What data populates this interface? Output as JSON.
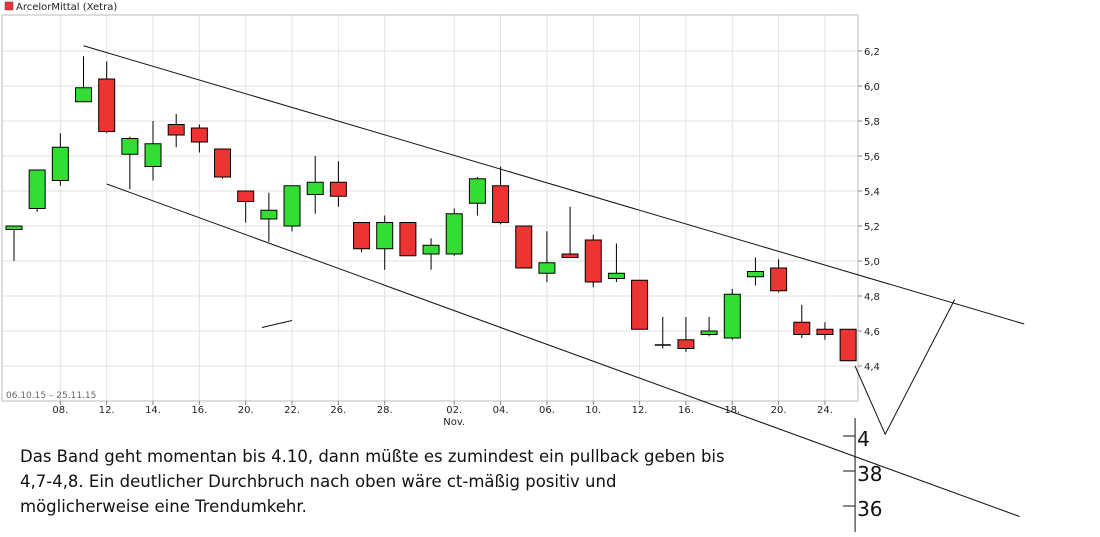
{
  "chart_data": {
    "type": "candlestick",
    "title": "ArcelorMittal (Xetra)",
    "date_range": "06.10.15 – 25.11.15",
    "ylim": [
      4.2,
      6.3
    ],
    "y_ticks": [
      "6,2",
      "6,0",
      "5,8",
      "5,6",
      "5,4",
      "5,2",
      "5,0",
      "4,8",
      "4,6",
      "4,4"
    ],
    "x_ticks": [
      {
        "i": 2,
        "label": "08."
      },
      {
        "i": 4,
        "label": "12."
      },
      {
        "i": 6,
        "label": "14."
      },
      {
        "i": 8,
        "label": "16."
      },
      {
        "i": 10,
        "label": "20."
      },
      {
        "i": 12,
        "label": "22."
      },
      {
        "i": 14,
        "label": "26."
      },
      {
        "i": 16,
        "label": "28."
      },
      {
        "i": 19,
        "label": "02."
      },
      {
        "i": 21,
        "label": "04."
      },
      {
        "i": 23,
        "label": "06."
      },
      {
        "i": 25,
        "label": "10."
      },
      {
        "i": 27,
        "label": "12."
      },
      {
        "i": 29,
        "label": "16."
      },
      {
        "i": 31,
        "label": "18."
      },
      {
        "i": 33,
        "label": "20."
      },
      {
        "i": 35,
        "label": "24."
      }
    ],
    "month_label": {
      "i": 19,
      "label": "Nov."
    },
    "colors": {
      "up": "#33dd33",
      "down": "#ee3333",
      "doji": "#000000"
    },
    "candles": [
      {
        "o": 5.18,
        "h": 5.2,
        "l": 5.0,
        "c": 5.2
      },
      {
        "o": 5.3,
        "h": 5.52,
        "l": 5.28,
        "c": 5.52
      },
      {
        "o": 5.46,
        "h": 5.73,
        "l": 5.43,
        "c": 5.65
      },
      {
        "o": 5.91,
        "h": 6.17,
        "l": 5.91,
        "c": 5.99
      },
      {
        "o": 6.04,
        "h": 6.14,
        "l": 5.73,
        "c": 5.74
      },
      {
        "o": 5.61,
        "h": 5.71,
        "l": 5.41,
        "c": 5.7
      },
      {
        "o": 5.54,
        "h": 5.8,
        "l": 5.46,
        "c": 5.67
      },
      {
        "o": 5.78,
        "h": 5.84,
        "l": 5.65,
        "c": 5.72
      },
      {
        "o": 5.76,
        "h": 5.78,
        "l": 5.62,
        "c": 5.68
      },
      {
        "o": 5.64,
        "h": 5.64,
        "l": 5.47,
        "c": 5.48
      },
      {
        "o": 5.4,
        "h": 5.4,
        "l": 5.22,
        "c": 5.34
      },
      {
        "o": 5.24,
        "h": 5.39,
        "l": 5.11,
        "c": 5.29
      },
      {
        "o": 5.2,
        "h": 5.43,
        "l": 5.17,
        "c": 5.43
      },
      {
        "o": 5.38,
        "h": 5.6,
        "l": 5.27,
        "c": 5.45
      },
      {
        "o": 5.45,
        "h": 5.57,
        "l": 5.31,
        "c": 5.37
      },
      {
        "o": 5.22,
        "h": 5.22,
        "l": 5.05,
        "c": 5.07
      },
      {
        "o": 5.07,
        "h": 5.26,
        "l": 4.95,
        "c": 5.22
      },
      {
        "o": 5.22,
        "h": 5.22,
        "l": 5.03,
        "c": 5.03
      },
      {
        "o": 5.04,
        "h": 5.13,
        "l": 4.95,
        "c": 5.09
      },
      {
        "o": 5.04,
        "h": 5.3,
        "l": 5.03,
        "c": 5.27
      },
      {
        "o": 5.33,
        "h": 5.48,
        "l": 5.26,
        "c": 5.47
      },
      {
        "o": 5.43,
        "h": 5.54,
        "l": 5.21,
        "c": 5.22
      },
      {
        "o": 5.2,
        "h": 5.2,
        "l": 4.96,
        "c": 4.96
      },
      {
        "o": 4.93,
        "h": 5.17,
        "l": 4.88,
        "c": 4.99
      },
      {
        "o": 5.04,
        "h": 5.31,
        "l": 5.02,
        "c": 5.02
      },
      {
        "o": 5.12,
        "h": 5.15,
        "l": 4.85,
        "c": 4.88
      },
      {
        "o": 4.9,
        "h": 5.1,
        "l": 4.88,
        "c": 4.93
      },
      {
        "o": 4.89,
        "h": 4.89,
        "l": 4.61,
        "c": 4.61
      },
      {
        "o": 4.52,
        "h": 4.68,
        "l": 4.5,
        "c": 4.52
      },
      {
        "o": 4.55,
        "h": 4.68,
        "l": 4.48,
        "c": 4.5
      },
      {
        "o": 4.58,
        "h": 4.68,
        "l": 4.57,
        "c": 4.6
      },
      {
        "o": 4.56,
        "h": 4.84,
        "l": 4.55,
        "c": 4.81
      },
      {
        "o": 4.91,
        "h": 5.02,
        "l": 4.86,
        "c": 4.94
      },
      {
        "o": 4.96,
        "h": 5.01,
        "l": 4.82,
        "c": 4.83
      },
      {
        "o": 4.65,
        "h": 4.75,
        "l": 4.56,
        "c": 4.58
      },
      {
        "o": 4.61,
        "h": 4.65,
        "l": 4.55,
        "c": 4.58
      },
      {
        "o": 4.61,
        "h": 4.61,
        "l": 4.43,
        "c": 4.43
      }
    ],
    "channel_lines": {
      "upper": [
        {
          "i": 3,
          "y": 6.23
        },
        {
          "i": 43.6,
          "y": 4.64
        }
      ],
      "lower": [
        {
          "i": 4,
          "y": 5.44
        },
        {
          "i": 43.4,
          "y": 3.54
        }
      ]
    },
    "projection": [
      {
        "i": 36.3,
        "y": 4.4
      },
      {
        "i": 37.6,
        "y": 4.01
      },
      {
        "i": 40.6,
        "y": 4.78
      }
    ],
    "stray_line": [
      {
        "i": 10.7,
        "y": 4.62
      },
      {
        "i": 12.0,
        "y": 4.66
      }
    ],
    "handwritten_scale": [
      {
        "label": "4",
        "y": 4.0
      },
      {
        "label": "38",
        "y": 3.8
      },
      {
        "label": "36",
        "y": 3.6
      }
    ]
  },
  "caption": {
    "lines": [
      "Das Band geht momentan bis 4.10, dann müßte es zumindest ein pullback geben bis",
      "4,7-4,8. Ein deutlicher Durchbruch nach oben wäre ct-mäßig positiv und",
      "möglicherweise eine Trendumkehr."
    ]
  }
}
